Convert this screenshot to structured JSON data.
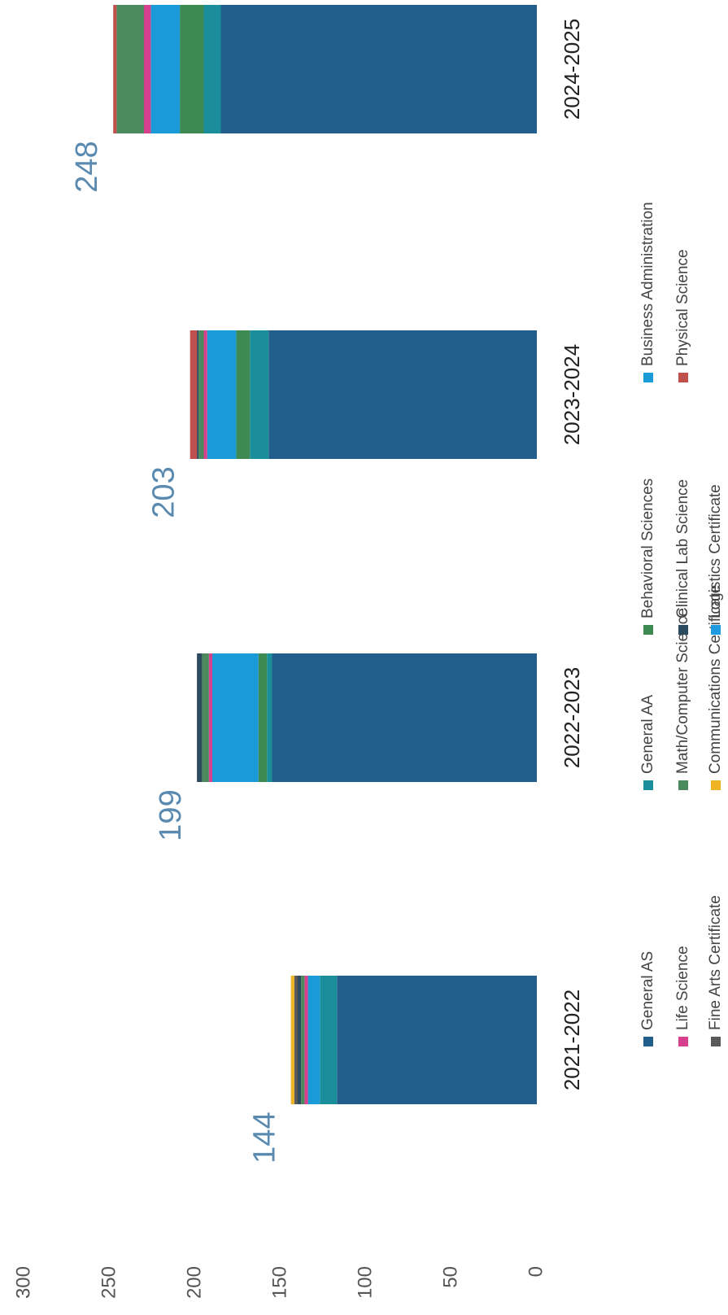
{
  "chart_data": {
    "type": "stacked_bar",
    "categories": [
      "2021-2022",
      "2022-2023",
      "2023-2024",
      "2024-2025"
    ],
    "totals": [
      144,
      199,
      203,
      248
    ],
    "series": [
      {
        "name": "General AS",
        "color": "#215e8c",
        "values": [
          117,
          155,
          157,
          185
        ]
      },
      {
        "name": "General AA",
        "color": "#1b8e9c",
        "values": [
          10,
          3,
          11,
          10
        ]
      },
      {
        "name": "Behavioral Sciences",
        "color": "#3d8a52",
        "values": [
          0,
          5,
          8,
          14
        ]
      },
      {
        "name": "Business Administration",
        "color": "#1a9ad6",
        "values": [
          7,
          27,
          17,
          17
        ]
      },
      {
        "name": "Life Science",
        "color": "#d6408c",
        "values": [
          2,
          2,
          2,
          4
        ]
      },
      {
        "name": "Math/Computer Science",
        "color": "#4a8a5c",
        "values": [
          2,
          4,
          3,
          16
        ]
      },
      {
        "name": "Clinical Lab Science",
        "color": "#2d4b5e",
        "values": [
          2,
          3,
          1,
          0
        ]
      },
      {
        "name": "Physical Science",
        "color": "#c0504d",
        "values": [
          0,
          0,
          4,
          2
        ]
      },
      {
        "name": "Fine Arts Certificate",
        "color": "#5a5a5a",
        "values": [
          2,
          0,
          0,
          0
        ]
      },
      {
        "name": "Communications Certificate",
        "color": "#f0b323",
        "values": [
          2,
          0,
          0,
          0
        ]
      },
      {
        "name": "Logistics Certificate",
        "color": "#1e9be0",
        "values": [
          0,
          0,
          0,
          0
        ]
      }
    ],
    "ylim": [
      0,
      300
    ],
    "yticks": [
      0,
      50,
      100,
      150,
      200,
      250,
      300
    ],
    "grid": false,
    "legend": "bottom",
    "rotation": -90
  }
}
